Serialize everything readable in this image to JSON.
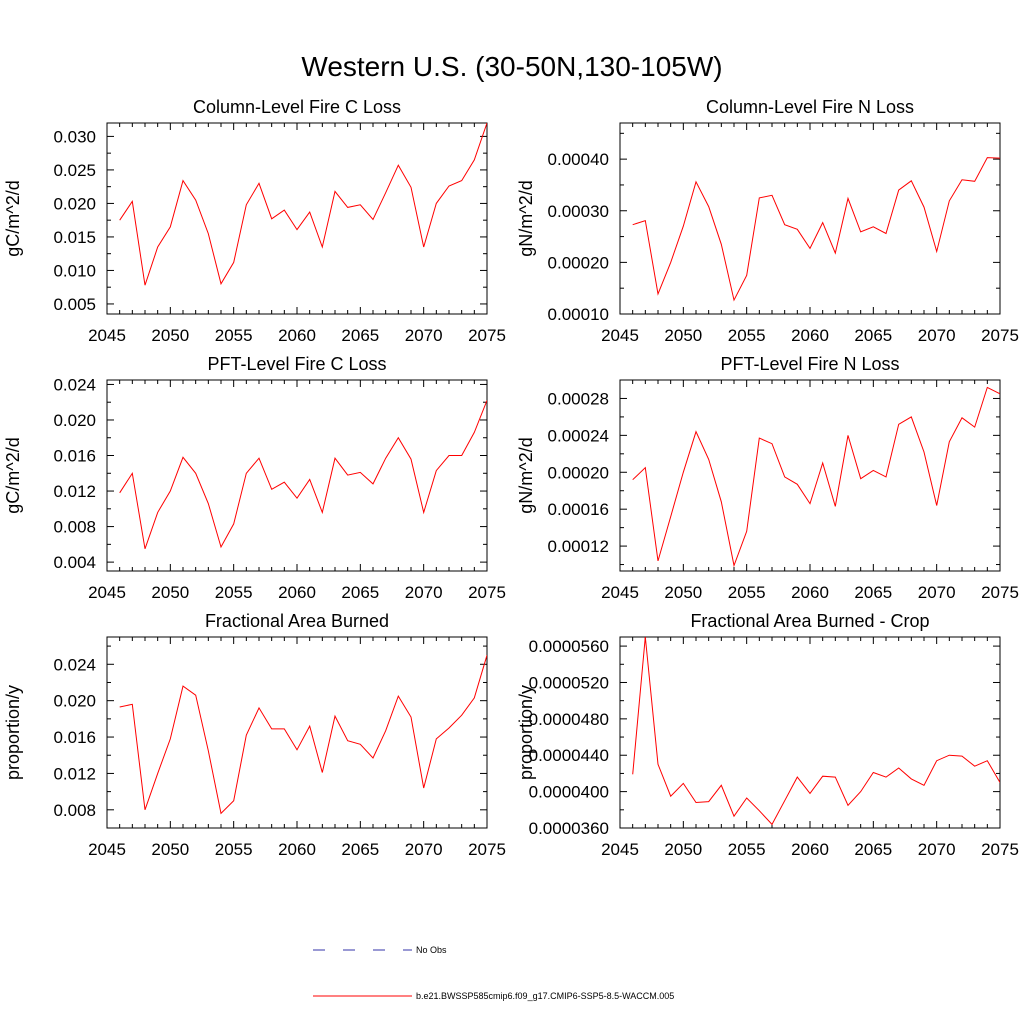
{
  "title": "Western U.S. (30-50N,130-105W)",
  "colors": {
    "model": "#ff0000",
    "obs": "#3333aa",
    "axis": "#000000"
  },
  "legend": {
    "obs_label": "No Obs",
    "model_label": "b.e21.BWSSP585cmip6.f09_g17.CMIP6-SSP5-8.5-WACCM.005"
  },
  "chart_data": [
    {
      "type": "line",
      "title": "Column-Level Fire C Loss",
      "ylabel": "gC/m^2/d",
      "xlim": [
        2045,
        2075
      ],
      "ylim": [
        0.0035,
        0.032
      ],
      "xticks": [
        2045,
        2050,
        2055,
        2060,
        2065,
        2070,
        2075
      ],
      "yticks": [
        0.005,
        0.01,
        0.015,
        0.02,
        0.025,
        0.03
      ],
      "ytick_labels": [
        "0.005",
        "0.010",
        "0.015",
        "0.020",
        "0.025",
        "0.030"
      ],
      "x": [
        2046,
        2047,
        2048,
        2049,
        2050,
        2051,
        2052,
        2053,
        2054,
        2055,
        2056,
        2057,
        2058,
        2059,
        2060,
        2061,
        2062,
        2063,
        2064,
        2065,
        2066,
        2067,
        2068,
        2069,
        2070,
        2071,
        2072,
        2073,
        2074,
        2075
      ],
      "series": [
        {
          "values": [
            0.0175,
            0.0203,
            0.0078,
            0.0135,
            0.0165,
            0.0234,
            0.0205,
            0.0155,
            0.008,
            0.0112,
            0.0198,
            0.023,
            0.0177,
            0.019,
            0.0161,
            0.0187,
            0.0135,
            0.0218,
            0.0194,
            0.0198,
            0.0176,
            0.0216,
            0.0257,
            0.0224,
            0.0135,
            0.02,
            0.0226,
            0.0234,
            0.0265,
            0.032
          ]
        }
      ]
    },
    {
      "type": "line",
      "title": "Column-Level Fire N Loss",
      "ylabel": "gN/m^2/d",
      "xlim": [
        2045,
        2075
      ],
      "ylim": [
        0.0001,
        0.00047
      ],
      "xticks": [
        2045,
        2050,
        2055,
        2060,
        2065,
        2070,
        2075
      ],
      "yticks": [
        0.0001,
        0.0002,
        0.0003,
        0.0004
      ],
      "ytick_labels": [
        "0.00010",
        "0.00020",
        "0.00030",
        "0.00040"
      ],
      "x": [
        2046,
        2047,
        2048,
        2049,
        2050,
        2051,
        2052,
        2053,
        2054,
        2055,
        2056,
        2057,
        2058,
        2059,
        2060,
        2061,
        2062,
        2063,
        2064,
        2065,
        2066,
        2067,
        2068,
        2069,
        2070,
        2071,
        2072,
        2073,
        2074,
        2075
      ],
      "series": [
        {
          "values": [
            0.000273,
            0.000281,
            0.000139,
            0.0002,
            0.00027,
            0.000356,
            0.000308,
            0.000235,
            0.000127,
            0.000175,
            0.000325,
            0.00033,
            0.000273,
            0.000264,
            0.000227,
            0.000277,
            0.000218,
            0.000324,
            0.000259,
            0.000269,
            0.000256,
            0.00034,
            0.000358,
            0.000307,
            0.000221,
            0.000319,
            0.00036,
            0.000357,
            0.000403,
            0.000402
          ]
        }
      ]
    },
    {
      "type": "line",
      "title": "PFT-Level Fire C Loss",
      "ylabel": "gC/m^2/d",
      "xlim": [
        2045,
        2075
      ],
      "ylim": [
        0.003,
        0.0245
      ],
      "xticks": [
        2045,
        2050,
        2055,
        2060,
        2065,
        2070,
        2075
      ],
      "yticks": [
        0.004,
        0.008,
        0.012,
        0.016,
        0.02,
        0.024
      ],
      "ytick_labels": [
        "0.004",
        "0.008",
        "0.012",
        "0.016",
        "0.020",
        "0.024"
      ],
      "x": [
        2046,
        2047,
        2048,
        2049,
        2050,
        2051,
        2052,
        2053,
        2054,
        2055,
        2056,
        2057,
        2058,
        2059,
        2060,
        2061,
        2062,
        2063,
        2064,
        2065,
        2066,
        2067,
        2068,
        2069,
        2070,
        2071,
        2072,
        2073,
        2074,
        2075
      ],
      "series": [
        {
          "values": [
            0.0118,
            0.014,
            0.0055,
            0.0096,
            0.012,
            0.0158,
            0.014,
            0.0106,
            0.0057,
            0.0083,
            0.014,
            0.0157,
            0.0122,
            0.013,
            0.0112,
            0.0133,
            0.0096,
            0.0157,
            0.0138,
            0.0141,
            0.0128,
            0.0157,
            0.018,
            0.0156,
            0.0096,
            0.0143,
            0.016,
            0.016,
            0.0186,
            0.0222
          ]
        }
      ]
    },
    {
      "type": "line",
      "title": "PFT-Level Fire N Loss",
      "ylabel": "gN/m^2/d",
      "xlim": [
        2045,
        2075
      ],
      "ylim": [
        9.3e-05,
        0.0003
      ],
      "xticks": [
        2045,
        2050,
        2055,
        2060,
        2065,
        2070,
        2075
      ],
      "yticks": [
        0.00012,
        0.00016,
        0.0002,
        0.00024,
        0.00028
      ],
      "ytick_labels": [
        "0.00012",
        "0.00016",
        "0.00020",
        "0.00024",
        "0.00028"
      ],
      "x": [
        2046,
        2047,
        2048,
        2049,
        2050,
        2051,
        2052,
        2053,
        2054,
        2055,
        2056,
        2057,
        2058,
        2059,
        2060,
        2061,
        2062,
        2063,
        2064,
        2065,
        2066,
        2067,
        2068,
        2069,
        2070,
        2071,
        2072,
        2073,
        2074,
        2075
      ],
      "series": [
        {
          "values": [
            0.000192,
            0.000205,
            0.000104,
            0.000152,
            0.0002,
            0.000244,
            0.000214,
            0.000168,
            9.9e-05,
            0.000136,
            0.000237,
            0.000231,
            0.000195,
            0.000187,
            0.000166,
            0.00021,
            0.000163,
            0.00024,
            0.000193,
            0.000202,
            0.000195,
            0.000252,
            0.00026,
            0.000222,
            0.000164,
            0.000233,
            0.000259,
            0.000249,
            0.000292,
            0.000285
          ]
        }
      ]
    },
    {
      "type": "line",
      "title": "Fractional Area Burned",
      "ylabel": "proportion/y",
      "xlim": [
        2045,
        2075
      ],
      "ylim": [
        0.006,
        0.027
      ],
      "xticks": [
        2045,
        2050,
        2055,
        2060,
        2065,
        2070,
        2075
      ],
      "yticks": [
        0.008,
        0.012,
        0.016,
        0.02,
        0.024
      ],
      "ytick_labels": [
        "0.008",
        "0.012",
        "0.016",
        "0.020",
        "0.024"
      ],
      "x": [
        2046,
        2047,
        2048,
        2049,
        2050,
        2051,
        2052,
        2053,
        2054,
        2055,
        2056,
        2057,
        2058,
        2059,
        2060,
        2061,
        2062,
        2063,
        2064,
        2065,
        2066,
        2067,
        2068,
        2069,
        2070,
        2071,
        2072,
        2073,
        2074,
        2075
      ],
      "series": [
        {
          "values": [
            0.0193,
            0.0196,
            0.008,
            0.012,
            0.0158,
            0.0216,
            0.0206,
            0.0145,
            0.0076,
            0.009,
            0.0162,
            0.0192,
            0.0169,
            0.0169,
            0.0146,
            0.0172,
            0.0121,
            0.0183,
            0.0156,
            0.0152,
            0.0137,
            0.0167,
            0.0205,
            0.0182,
            0.0104,
            0.0158,
            0.017,
            0.0184,
            0.0203,
            0.025
          ]
        }
      ]
    },
    {
      "type": "line",
      "title": "Fractional Area Burned - Crop",
      "ylabel": "proportion/y",
      "xlim": [
        2045,
        2075
      ],
      "ylim": [
        3.6e-05,
        5.7e-05
      ],
      "xticks": [
        2045,
        2050,
        2055,
        2060,
        2065,
        2070,
        2075
      ],
      "yticks": [
        3.6e-05,
        4e-05,
        4.4e-05,
        4.8e-05,
        5.2e-05,
        5.6e-05
      ],
      "ytick_labels": [
        "0.0000360",
        "0.0000400",
        "0.0000440",
        "0.0000480",
        "0.0000520",
        "0.0000560"
      ],
      "x": [
        2046,
        2047,
        2048,
        2049,
        2050,
        2051,
        2052,
        2053,
        2054,
        2055,
        2056,
        2057,
        2058,
        2059,
        2060,
        2061,
        2062,
        2063,
        2064,
        2065,
        2066,
        2067,
        2068,
        2069,
        2070,
        2071,
        2072,
        2073,
        2074,
        2075
      ],
      "series": [
        {
          "values": [
            4.19e-05,
            5.7e-05,
            4.3e-05,
            3.95e-05,
            4.09e-05,
            3.88e-05,
            3.89e-05,
            4.07e-05,
            3.73e-05,
            3.93e-05,
            3.79e-05,
            3.64e-05,
            3.9e-05,
            4.16e-05,
            3.98e-05,
            4.17e-05,
            4.16e-05,
            3.85e-05,
            4e-05,
            4.21e-05,
            4.16e-05,
            4.26e-05,
            4.14e-05,
            4.07e-05,
            4.34e-05,
            4.4e-05,
            4.39e-05,
            4.28e-05,
            4.34e-05,
            4.1e-05
          ]
        }
      ]
    }
  ]
}
